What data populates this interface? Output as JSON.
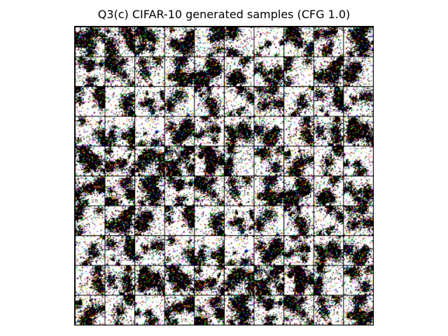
{
  "figure": {
    "title": "Q3(c) CIFAR-10 generated samples (CFG 1.0)"
  },
  "sample_grid": {
    "rows": 10,
    "columns": 10,
    "content": "noisy generated samples",
    "border_color": "#000000",
    "palette": [
      "#ffffff",
      "#000000",
      "#ffff00",
      "#ff0000",
      "#00ffff",
      "#0000ff",
      "#00ff00",
      "#ff00ff",
      "#ff8800",
      "#7a4a1a"
    ]
  }
}
